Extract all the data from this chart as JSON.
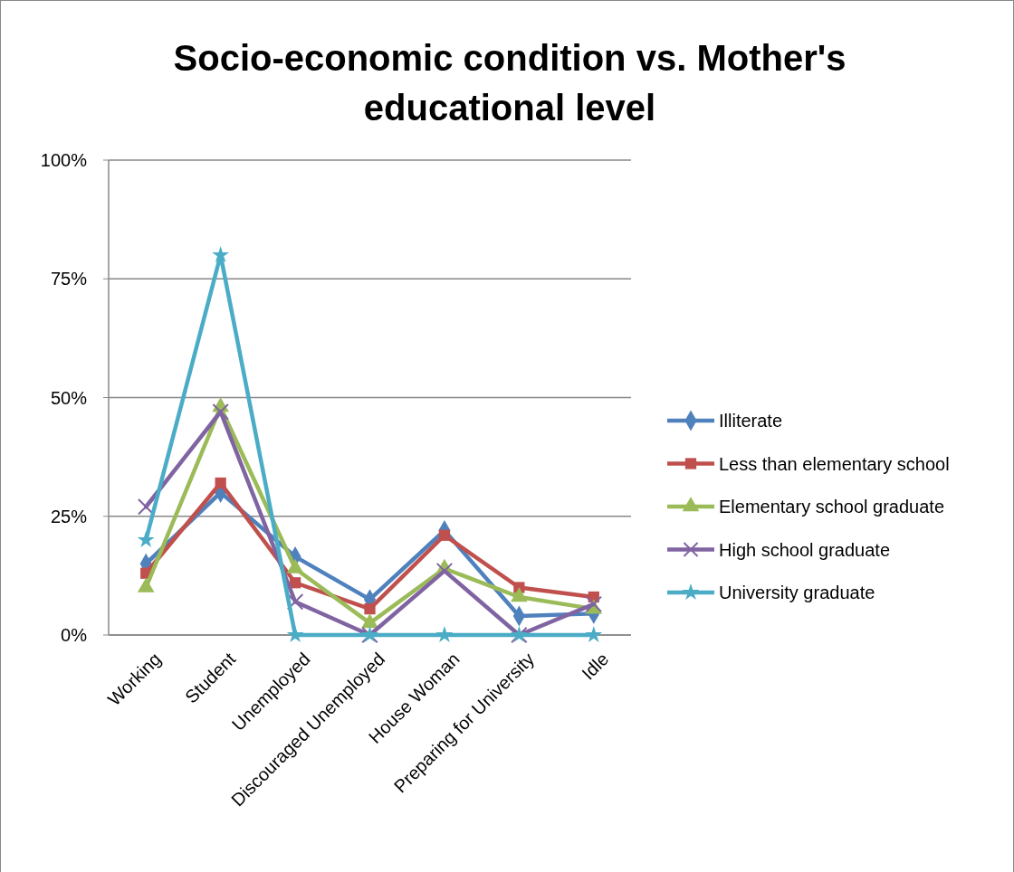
{
  "chart_data": {
    "type": "line",
    "title": "Socio-economic condition vs. Mother's educational level",
    "categories": [
      "Working",
      "Student",
      "Unemployed",
      "Discouraged Unemployed",
      "House Woman",
      "Preparing for University",
      "Idle"
    ],
    "series": [
      {
        "name": "Illiterate",
        "color": "#4f81bd",
        "marker": "diamond",
        "values": [
          15,
          30,
          16.5,
          7.5,
          22,
          4,
          4.5
        ]
      },
      {
        "name": "Less than elementary school",
        "color": "#c0504d",
        "marker": "square",
        "values": [
          13,
          32,
          11,
          5.5,
          21,
          10,
          8
        ]
      },
      {
        "name": "Elementary school graduate",
        "color": "#9bbb59",
        "marker": "triangle",
        "values": [
          10,
          48,
          14,
          2.5,
          14,
          8,
          5.5
        ]
      },
      {
        "name": "High school graduate",
        "color": "#8064a2",
        "marker": "cross",
        "values": [
          27,
          47,
          7,
          0,
          13.5,
          0,
          6.5
        ]
      },
      {
        "name": "University graduate",
        "color": "#4bacc6",
        "marker": "star",
        "values": [
          20,
          80,
          0,
          0,
          0,
          0,
          0
        ]
      }
    ],
    "ylim": [
      0,
      100
    ],
    "yticks": [
      {
        "value": 0,
        "label": "0%"
      },
      {
        "value": 25,
        "label": "25%"
      },
      {
        "value": 50,
        "label": "50%"
      },
      {
        "value": 75,
        "label": "75%"
      },
      {
        "value": 100,
        "label": "100%"
      }
    ],
    "grid": "y",
    "legend": "right"
  }
}
